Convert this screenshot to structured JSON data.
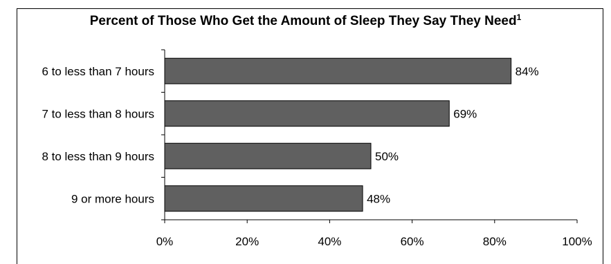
{
  "chart_data": {
    "type": "bar",
    "orientation": "horizontal",
    "title": "Percent of Those Who Get the Amount of Sleep They Say They Need",
    "title_footnote": "1",
    "categories": [
      "6 to less than 7 hours",
      "7 to less than 8 hours",
      "8 to less than 9 hours",
      "9 or more hours"
    ],
    "values": [
      84,
      69,
      50,
      48
    ],
    "value_labels": [
      "84%",
      "69%",
      "50%",
      "48%"
    ],
    "xlim": [
      0,
      100
    ],
    "xticks": [
      0,
      20,
      40,
      60,
      80,
      100
    ],
    "xtick_labels": [
      "0%",
      "20%",
      "40%",
      "60%",
      "80%",
      "100%"
    ],
    "grid": false,
    "bar_color": "#606060"
  }
}
